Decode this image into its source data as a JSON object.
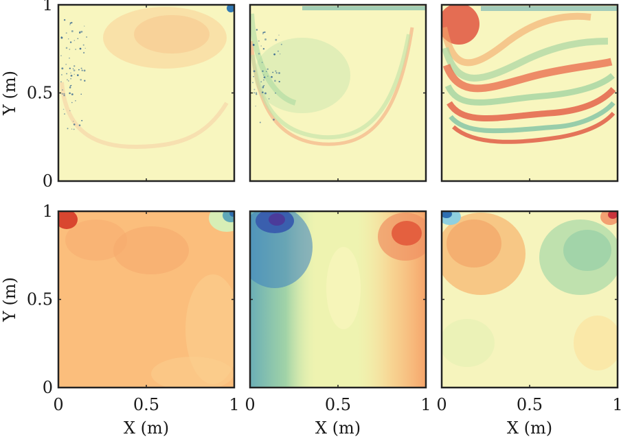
{
  "chart_data": {
    "type": "heatmap",
    "layout": "2 rows x 3 columns of filled-contour field plots",
    "colormap": "spectral (blue-green-yellow-orange-red)",
    "colors": {
      "high": "#d53e4f",
      "mid_high": "#fc8d59",
      "mid": "#ffffbf",
      "mid_low": "#99d594",
      "low": "#3288bd",
      "axes": "#222222"
    },
    "x_axis": {
      "label": "X (m)",
      "range": [
        0,
        1
      ],
      "ticks": [
        "0",
        "0.5",
        "1"
      ]
    },
    "y_axis": {
      "label": "Y (m)",
      "range": [
        0,
        1
      ],
      "ticks": [
        "0",
        "0.5",
        "1"
      ]
    },
    "grid": false,
    "legend": "none",
    "panels": [
      {
        "row": 1,
        "col": 1,
        "description": "mostly near-zero field, faint orange lobe near top right, scattered dark specks along left wall",
        "y_tick_labels_shown": true,
        "x_tick_labels_shown": false
      },
      {
        "row": 1,
        "col": 2,
        "description": "near-zero field with faint green core and thin orange arc from left wall down and up toward right",
        "y_tick_labels_shown": false,
        "x_tick_labels_shown": false
      },
      {
        "row": 1,
        "col": 3,
        "description": "multiple alternating red/green arcs concentrated toward the bottom of the cavity, strong red at top left corner",
        "y_tick_labels_shown": false,
        "x_tick_labels_shown": false
      },
      {
        "row": 2,
        "col": 1,
        "description": "smooth orange field, red spot at top left corner, blue spot at top right corner",
        "y_tick_labels_shown": true,
        "x_tick_labels_shown": true
      },
      {
        "row": 2,
        "col": 2,
        "description": "blue/teal on left side with dark blue core near (0.15, 0.95), orange/red on right with red core near (0.85, 0.9)",
        "y_tick_labels_shown": false,
        "x_tick_labels_shown": true
      },
      {
        "row": 2,
        "col": 3,
        "description": "blue spot at top left corner, red spot at top right corner, orange lobe upper left, green lobe upper right, light yellow lower half",
        "y_tick_labels_shown": false,
        "x_tick_labels_shown": true
      }
    ]
  }
}
